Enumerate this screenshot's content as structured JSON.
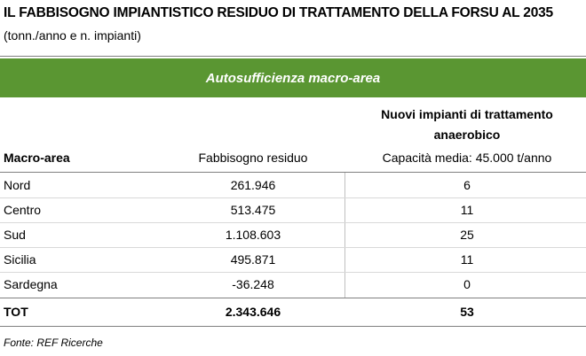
{
  "header": {
    "title": "IL FABBISOGNO IMPIANTISTICO RESIDUO DI TRATTAMENTO DELLA FORSU AL 2035",
    "subtitle": "(tonn./anno e n. impianti)"
  },
  "band": {
    "label": "Autosufficienza macro-area",
    "color": "#5a9632"
  },
  "table": {
    "col_macro": "Macro-area",
    "col_fabbisogno": "Fabbisogno residuo",
    "col_nuovi": "Nuovi impianti di trattamento anaerobico",
    "col_capacita": "Capacità media: 45.000 t/anno",
    "rows": [
      {
        "name": "Nord",
        "fabbisogno": "261.946",
        "impianti": "6"
      },
      {
        "name": "Centro",
        "fabbisogno": "513.475",
        "impianti": "11"
      },
      {
        "name": "Sud",
        "fabbisogno": "1.108.603",
        "impianti": "25"
      },
      {
        "name": "Sicilia",
        "fabbisogno": "495.871",
        "impianti": "11"
      },
      {
        "name": "Sardegna",
        "fabbisogno": "-36.248",
        "impianti": "0"
      }
    ],
    "total": {
      "name": "TOT",
      "fabbisogno": "2.343.646",
      "impianti": "53"
    }
  },
  "footer": {
    "source": "Fonte: REF Ricerche"
  }
}
